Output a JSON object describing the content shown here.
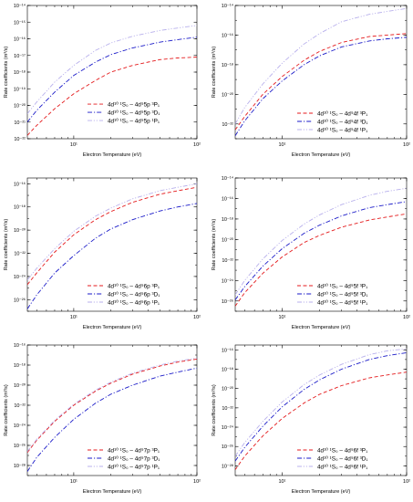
{
  "chart_data": [
    {
      "type": "line",
      "xlabel": "Electron Temperature (eV)",
      "ylabel": "Rate coefficients (m³/s)",
      "xscale": "log",
      "yscale": "log",
      "xlim": [
        4.2,
        100
      ],
      "ylim": [
        -22,
        -14
      ],
      "x_ticks": [
        {
          "v": 10,
          "label": "10¹"
        },
        {
          "v": 100,
          "label": "10²"
        }
      ],
      "y_ticks": [
        {
          "v": -22,
          "label": "10⁻²²"
        },
        {
          "v": -21,
          "label": "10⁻²¹"
        },
        {
          "v": -20,
          "label": "10⁻²⁰"
        },
        {
          "v": -19,
          "label": "10⁻¹⁹"
        },
        {
          "v": -18,
          "label": "10⁻¹⁸"
        },
        {
          "v": -17,
          "label": "10⁻¹⁷"
        },
        {
          "v": -16,
          "label": "10⁻¹⁶"
        },
        {
          "v": -15,
          "label": "10⁻¹⁵"
        },
        {
          "v": -14,
          "label": "10⁻¹⁴"
        }
      ],
      "legend_position": "center-right",
      "series": [
        {
          "name": "4d¹⁰ ¹S₀ – 4d⁹5p ³P₁",
          "color": "#e41a1c",
          "dash": "dash",
          "x": [
            4.2,
            5,
            7,
            10,
            15,
            20,
            30,
            50,
            70,
            100
          ],
          "y": [
            -21.8,
            -21.2,
            -20.2,
            -19.3,
            -18.5,
            -18.0,
            -17.6,
            -17.25,
            -17.15,
            -17.1
          ]
        },
        {
          "name": "4d¹⁰ ¹S₀ – 4d⁹5p ³D₁",
          "color": "#1a1ac8",
          "dash": "dashdot",
          "x": [
            4.2,
            5,
            7,
            10,
            15,
            20,
            30,
            50,
            70,
            100
          ],
          "y": [
            -21.0,
            -20.3,
            -19.2,
            -18.2,
            -17.4,
            -16.95,
            -16.55,
            -16.2,
            -16.05,
            -15.9
          ]
        },
        {
          "name": "4d¹⁰ ¹S₀ – 4d⁹5p ¹P₁",
          "color": "#b8b0ec",
          "dash": "dashdotdot",
          "x": [
            4.2,
            5,
            7,
            10,
            15,
            20,
            30,
            50,
            70,
            100
          ],
          "y": [
            -20.5,
            -19.8,
            -18.6,
            -17.6,
            -16.7,
            -16.25,
            -15.85,
            -15.5,
            -15.35,
            -15.2
          ]
        }
      ]
    },
    {
      "type": "line",
      "xlabel": "Electron Temperature (eV)",
      "ylabel": "Rate coefficients (m³/s)",
      "xscale": "log",
      "yscale": "log",
      "xlim": [
        4.2,
        100
      ],
      "ylim": [
        -23,
        -14
      ],
      "x_ticks": [
        {
          "v": 10,
          "label": "10¹"
        },
        {
          "v": 100,
          "label": "10²"
        }
      ],
      "y_ticks": [
        {
          "v": -22,
          "label": "10⁻²²"
        },
        {
          "v": -20,
          "label": "10⁻²⁰"
        },
        {
          "v": -18,
          "label": "10⁻¹⁸"
        },
        {
          "v": -16,
          "label": "10⁻¹⁶"
        },
        {
          "v": -14,
          "label": "10⁻¹⁴"
        }
      ],
      "legend_position": "bottom-right",
      "series": [
        {
          "name": "4d¹⁰ ¹S₀ – 4d⁹4f ³P₁",
          "color": "#e41a1c",
          "dash": "dash",
          "x": [
            4.2,
            5,
            7,
            10,
            15,
            20,
            30,
            50,
            70,
            100
          ],
          "y": [
            -22.4,
            -21.5,
            -20.0,
            -18.8,
            -17.7,
            -17.1,
            -16.5,
            -16.1,
            -16.0,
            -15.9
          ]
        },
        {
          "name": "4d¹⁰ ¹S₀ – 4d⁹4f ³D₁",
          "color": "#1a1ac8",
          "dash": "dashdot",
          "x": [
            4.2,
            5,
            7,
            10,
            15,
            20,
            30,
            50,
            70,
            100
          ],
          "y": [
            -22.8,
            -21.8,
            -20.3,
            -19.1,
            -18.0,
            -17.4,
            -16.8,
            -16.4,
            -16.25,
            -16.15
          ]
        },
        {
          "name": "4d¹⁰ ¹S₀ – 4d⁹4f ¹P₁",
          "color": "#b8b0ec",
          "dash": "dashdotdot",
          "x": [
            4.2,
            5,
            7,
            10,
            15,
            20,
            30,
            50,
            70,
            100
          ],
          "y": [
            -22.0,
            -20.9,
            -19.3,
            -17.9,
            -16.6,
            -15.9,
            -15.1,
            -14.6,
            -14.4,
            -14.2
          ]
        }
      ]
    },
    {
      "type": "line",
      "xlabel": "Electron Temperature (eV)",
      "ylabel": "Rate coefficients (m³/s)",
      "xscale": "log",
      "yscale": "log",
      "xlim": [
        4.2,
        100
      ],
      "ylim": [
        -27,
        -15.5
      ],
      "x_ticks": [
        {
          "v": 10,
          "label": "10¹"
        },
        {
          "v": 100,
          "label": "10²"
        }
      ],
      "y_ticks": [
        {
          "v": -26,
          "label": "10⁻²⁶"
        },
        {
          "v": -24,
          "label": "10⁻²⁴"
        },
        {
          "v": -22,
          "label": "10⁻²²"
        },
        {
          "v": -20,
          "label": "10⁻²⁰"
        },
        {
          "v": -18,
          "label": "10⁻¹⁸"
        },
        {
          "v": -16,
          "label": "10⁻¹⁶"
        }
      ],
      "legend_position": "bottom-right",
      "series": [
        {
          "name": "4d¹⁰ ¹S₀ – 4d⁹6p ³P₁",
          "color": "#e41a1c",
          "dash": "dash",
          "x": [
            4.2,
            5,
            7,
            10,
            15,
            20,
            30,
            50,
            70,
            100
          ],
          "y": [
            -24.7,
            -23.7,
            -21.9,
            -20.4,
            -19.1,
            -18.4,
            -17.6,
            -16.9,
            -16.6,
            -16.3
          ]
        },
        {
          "name": "4d¹⁰ ¹S₀ – 4d⁹6p ³D₁",
          "color": "#1a1ac8",
          "dash": "dashdot",
          "x": [
            4.2,
            5,
            7,
            10,
            15,
            20,
            30,
            50,
            70,
            100
          ],
          "y": [
            -26.8,
            -25.6,
            -23.7,
            -22.2,
            -20.7,
            -19.9,
            -19.1,
            -18.35,
            -18.0,
            -17.7
          ]
        },
        {
          "name": "4d¹⁰ ¹S₀ – 4d⁹6p ¹P₁",
          "color": "#b8b0ec",
          "dash": "dashdotdot",
          "x": [
            4.2,
            5,
            7,
            10,
            15,
            20,
            30,
            50,
            70,
            100
          ],
          "y": [
            -24.3,
            -23.3,
            -21.6,
            -20.1,
            -18.8,
            -18.1,
            -17.3,
            -16.6,
            -16.3,
            -16.0
          ]
        }
      ]
    },
    {
      "type": "line",
      "xlabel": "Electron Temperature (eV)",
      "ylabel": "Rate coefficients (m³/s)",
      "xscale": "log",
      "yscale": "log",
      "xlim": [
        4.2,
        100
      ],
      "ylim": [
        -27,
        -14
      ],
      "x_ticks": [
        {
          "v": 10,
          "label": "10¹"
        },
        {
          "v": 100,
          "label": "10²"
        }
      ],
      "y_ticks": [
        {
          "v": -26,
          "label": "10⁻²⁶"
        },
        {
          "v": -24,
          "label": "10⁻²⁴"
        },
        {
          "v": -22,
          "label": "10⁻²²"
        },
        {
          "v": -20,
          "label": "10⁻²⁰"
        },
        {
          "v": -18,
          "label": "10⁻¹⁸"
        },
        {
          "v": -16,
          "label": "10⁻¹⁶"
        },
        {
          "v": -14,
          "label": "10⁻¹⁴"
        }
      ],
      "legend_position": "bottom-right",
      "series": [
        {
          "name": "4d¹⁰ ¹S₀ – 4d⁹5f ³P₁",
          "color": "#e41a1c",
          "dash": "dash",
          "x": [
            4.2,
            5,
            7,
            10,
            15,
            20,
            30,
            50,
            70,
            100
          ],
          "y": [
            -26.5,
            -25.2,
            -23.3,
            -21.7,
            -20.3,
            -19.6,
            -18.8,
            -18.1,
            -17.8,
            -17.5
          ]
        },
        {
          "name": "4d¹⁰ ¹S₀ – 4d⁹5f ³D₁",
          "color": "#1a1ac8",
          "dash": "dashdot",
          "x": [
            4.2,
            5,
            7,
            10,
            15,
            20,
            30,
            50,
            70,
            100
          ],
          "y": [
            -25.9,
            -24.6,
            -22.6,
            -20.9,
            -19.4,
            -18.6,
            -17.7,
            -16.9,
            -16.6,
            -16.3
          ]
        },
        {
          "name": "4d¹⁰ ¹S₀ – 4d⁹5f ¹P₁",
          "color": "#b8b0ec",
          "dash": "dashdotdot",
          "x": [
            4.2,
            5,
            7,
            10,
            15,
            20,
            30,
            50,
            70,
            100
          ],
          "y": [
            -25.4,
            -24.0,
            -21.9,
            -20.1,
            -18.5,
            -17.6,
            -16.6,
            -15.7,
            -15.3,
            -15.0
          ]
        }
      ]
    },
    {
      "type": "line",
      "xlabel": "Electron Temperature (eV)",
      "ylabel": "Rate coefficients (m³/s)",
      "xscale": "log",
      "yscale": "log",
      "xlim": [
        4.2,
        100
      ],
      "ylim": [
        -29,
        -16
      ],
      "x_ticks": [
        {
          "v": 10,
          "label": "10¹"
        },
        {
          "v": 100,
          "label": "10²"
        }
      ],
      "y_ticks": [
        {
          "v": -28,
          "label": "10⁻²⁸"
        },
        {
          "v": -26,
          "label": "10⁻²⁶"
        },
        {
          "v": -24,
          "label": "10⁻²⁴"
        },
        {
          "v": -22,
          "label": "10⁻²²"
        },
        {
          "v": -20,
          "label": "10⁻²⁰"
        },
        {
          "v": -18,
          "label": "10⁻¹⁸"
        },
        {
          "v": -16,
          "label": "10⁻¹⁶"
        }
      ],
      "legend_position": "bottom-right",
      "series": [
        {
          "name": "4d¹⁰ ¹S₀ – 4d⁹7p ³P₁",
          "color": "#e41a1c",
          "dash": "dash",
          "x": [
            4.2,
            5,
            7,
            10,
            15,
            20,
            30,
            50,
            70,
            100
          ],
          "y": [
            -26.7,
            -25.5,
            -23.6,
            -22.0,
            -20.6,
            -19.8,
            -18.9,
            -18.1,
            -17.7,
            -17.4
          ]
        },
        {
          "name": "4d¹⁰ ¹S₀ – 4d⁹7p ³D₁",
          "color": "#1a1ac8",
          "dash": "dashdot",
          "x": [
            4.2,
            5,
            7,
            10,
            15,
            20,
            30,
            50,
            70,
            100
          ],
          "y": [
            -28.6,
            -27.2,
            -25.2,
            -23.4,
            -21.8,
            -20.9,
            -20.0,
            -19.1,
            -18.7,
            -18.3
          ]
        },
        {
          "name": "4d¹⁰ ¹S₀ – 4d⁹7p ¹P₁",
          "color": "#b8b0ec",
          "dash": "dashdotdot",
          "x": [
            4.2,
            5,
            7,
            10,
            15,
            20,
            30,
            50,
            70,
            100
          ],
          "y": [
            -26.6,
            -25.4,
            -23.5,
            -21.9,
            -20.5,
            -19.7,
            -18.8,
            -18.0,
            -17.6,
            -17.3
          ]
        }
      ]
    },
    {
      "type": "line",
      "xlabel": "Electron Temperature (eV)",
      "ylabel": "Rate coefficients (m³/s)",
      "xscale": "log",
      "yscale": "log",
      "xlim": [
        4.2,
        100
      ],
      "ylim": [
        -29,
        -15.5
      ],
      "x_ticks": [
        {
          "v": 10,
          "label": "10¹"
        },
        {
          "v": 100,
          "label": "10²"
        }
      ],
      "y_ticks": [
        {
          "v": -28,
          "label": "10⁻²⁸"
        },
        {
          "v": -26,
          "label": "10⁻²⁶"
        },
        {
          "v": -24,
          "label": "10⁻²⁴"
        },
        {
          "v": -22,
          "label": "10⁻²²"
        },
        {
          "v": -20,
          "label": "10⁻²⁰"
        },
        {
          "v": -18,
          "label": "10⁻¹⁸"
        },
        {
          "v": -16,
          "label": "10⁻¹⁶"
        }
      ],
      "legend_position": "bottom-right",
      "series": [
        {
          "name": "4d¹⁰ ¹S₀ – 4d⁹6f ³P₁",
          "color": "#e41a1c",
          "dash": "dash",
          "x": [
            4.2,
            5,
            7,
            10,
            15,
            20,
            30,
            50,
            70,
            100
          ],
          "y": [
            -28.4,
            -27.0,
            -24.9,
            -23.1,
            -21.5,
            -20.6,
            -19.7,
            -18.9,
            -18.6,
            -18.3
          ]
        },
        {
          "name": "4d¹⁰ ¹S₀ – 4d⁹6f ³D₁",
          "color": "#1a1ac8",
          "dash": "dashdot",
          "x": [
            4.2,
            5,
            7,
            10,
            15,
            20,
            30,
            50,
            70,
            100
          ],
          "y": [
            -27.5,
            -26.1,
            -23.9,
            -21.9,
            -20.1,
            -19.1,
            -18.0,
            -17.0,
            -16.6,
            -16.3
          ]
        },
        {
          "name": "4d¹⁰ ¹S₀ – 4d⁹6f ¹P₁",
          "color": "#b8b0ec",
          "dash": "dashdotdot",
          "x": [
            4.2,
            5,
            7,
            10,
            15,
            20,
            30,
            50,
            70,
            100
          ],
          "y": [
            -27.0,
            -25.6,
            -23.4,
            -21.4,
            -19.6,
            -18.6,
            -17.5,
            -16.5,
            -16.1,
            -15.9
          ]
        }
      ]
    }
  ]
}
